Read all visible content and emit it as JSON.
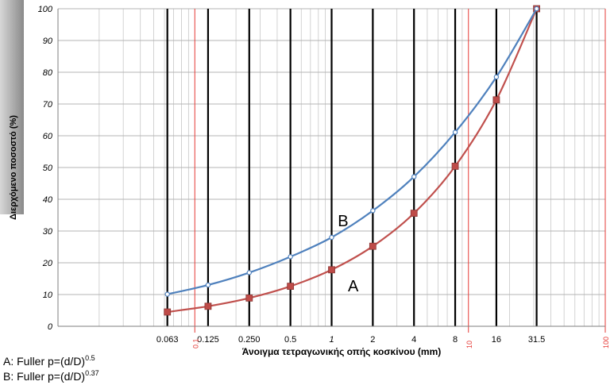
{
  "chart_data": {
    "type": "line",
    "title": "",
    "xlabel": "Άνοιγμα  τετραγωνικής οπής κοσκίνου (mm)",
    "ylabel": "Διερχόμενο ποσοστό (%)",
    "x_scale": "log",
    "xlim": [
      0.01,
      100
    ],
    "ylim": [
      0,
      100
    ],
    "y_ticks": [
      0,
      10,
      20,
      30,
      40,
      50,
      60,
      70,
      80,
      90,
      100
    ],
    "y_tick_labels": [
      "0",
      "10",
      "20",
      "30",
      "40",
      "50",
      "60",
      "70",
      "80",
      "90",
      "100"
    ],
    "sieve_sizes": [
      0.063,
      0.125,
      0.25,
      0.5,
      1,
      2,
      4,
      8,
      16,
      31.5
    ],
    "sieve_tick_labels": [
      "0.063",
      "0.125",
      "0.250",
      "0.5",
      "1",
      "2",
      "4",
      "8",
      "16",
      "31.5"
    ],
    "decade_tick_labels": [
      "0.1",
      "10",
      "100"
    ],
    "grid": true,
    "series": [
      {
        "name": "A",
        "x": [
          0.063,
          0.125,
          0.25,
          0.5,
          1,
          2,
          4,
          8,
          16,
          31.5
        ],
        "y": [
          4.5,
          6.3,
          8.9,
          12.6,
          17.8,
          25.2,
          35.6,
          50.4,
          71.3,
          100
        ],
        "color": "#c0504d",
        "marker": "square"
      },
      {
        "name": "B",
        "x": [
          0.063,
          0.125,
          0.25,
          0.5,
          1,
          2,
          4,
          8,
          16,
          31.5
        ],
        "y": [
          10.1,
          13.0,
          16.9,
          21.9,
          28.0,
          36.4,
          47.1,
          61.1,
          78.5,
          100
        ],
        "color": "#4f81bd",
        "marker": "circle"
      }
    ]
  },
  "footnotes": {
    "a_prefix": "A: Fuller p=(d/D)",
    "a_exp": "0.5",
    "b_prefix": "B: Fuller p=(d/D)",
    "b_exp": "0.37"
  }
}
